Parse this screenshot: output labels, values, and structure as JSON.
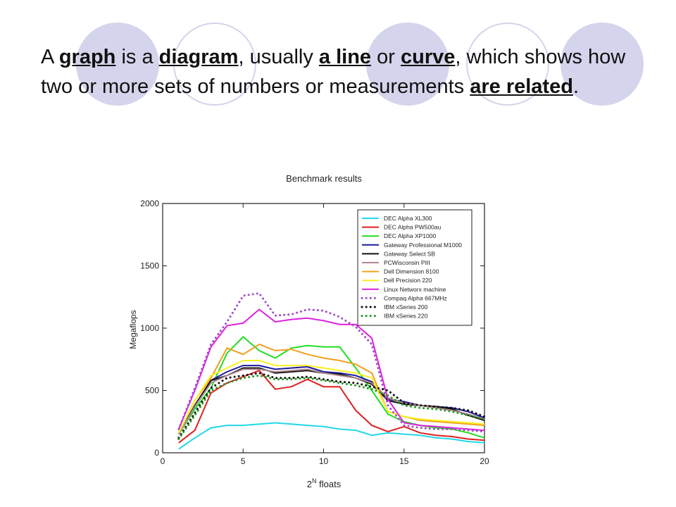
{
  "heading": {
    "w1": "A",
    "t1": "graph",
    "w2": "is a",
    "t2": "diagram",
    "w3": ", usually",
    "t3": "a line",
    "w4": "or",
    "t4": "curve",
    "w5": ", which shows how two or more sets of numbers or measurements",
    "t5": "are related",
    "w6": "."
  },
  "colors": {
    "circle": "#d4d4ec"
  },
  "chart_data": {
    "type": "line",
    "title": "Benchmark results",
    "xlabel_base": "2",
    "xlabel_sup": "N",
    "xlabel_rest": " floats",
    "ylabel": "Megaflops",
    "xlim": [
      0,
      20
    ],
    "ylim": [
      0,
      2000
    ],
    "xticks": [
      0,
      5,
      10,
      15,
      20
    ],
    "yticks": [
      0,
      500,
      1000,
      1500,
      2000
    ],
    "legend_position": "top-right",
    "x": [
      1,
      2,
      3,
      4,
      5,
      6,
      7,
      8,
      9,
      10,
      11,
      12,
      13,
      14,
      15,
      16,
      17,
      18,
      19,
      20
    ],
    "series": [
      {
        "name": "DEC Alpha XL300",
        "color": "#22d8e8",
        "dash": "solid",
        "values": [
          30,
          120,
          200,
          220,
          220,
          230,
          240,
          230,
          220,
          210,
          190,
          180,
          140,
          160,
          150,
          140,
          120,
          110,
          90,
          80
        ]
      },
      {
        "name": "DEC Alpha PW500au",
        "color": "#dd2020",
        "dash": "solid",
        "values": [
          80,
          180,
          480,
          560,
          610,
          660,
          510,
          530,
          590,
          530,
          530,
          340,
          220,
          170,
          210,
          160,
          140,
          130,
          110,
          100
        ]
      },
      {
        "name": "DEC Alpha XP1000",
        "color": "#22dd22",
        "dash": "solid",
        "values": [
          150,
          350,
          520,
          800,
          930,
          820,
          760,
          840,
          860,
          850,
          850,
          680,
          500,
          310,
          250,
          220,
          200,
          190,
          160,
          120
        ]
      },
      {
        "name": "Gateway Professional M1000",
        "color": "#1a1aa0",
        "dash": "solid",
        "values": [
          150,
          380,
          580,
          650,
          700,
          700,
          670,
          680,
          690,
          650,
          640,
          620,
          570,
          430,
          410,
          380,
          370,
          360,
          330,
          280
        ]
      },
      {
        "name": "Gateway Select SB",
        "color": "#111111",
        "dash": "solid",
        "values": [
          150,
          380,
          580,
          620,
          680,
          680,
          640,
          650,
          660,
          640,
          630,
          600,
          550,
          420,
          390,
          380,
          370,
          350,
          300,
          260
        ]
      },
      {
        "name": "PCWisconsin PIII",
        "color": "#b08890",
        "dash": "solid",
        "values": [
          150,
          370,
          560,
          620,
          670,
          670,
          650,
          660,
          670,
          640,
          620,
          600,
          560,
          440,
          400,
          380,
          360,
          340,
          310,
          270
        ]
      },
      {
        "name": "Dell Dimension 8100",
        "color": "#f0a020",
        "dash": "solid",
        "values": [
          160,
          420,
          600,
          840,
          790,
          870,
          820,
          830,
          790,
          760,
          740,
          710,
          640,
          330,
          290,
          260,
          250,
          240,
          230,
          220
        ]
      },
      {
        "name": "Dell Precision 220",
        "color": "#f8f020",
        "dash": "solid",
        "values": [
          160,
          420,
          620,
          680,
          740,
          740,
          700,
          700,
          700,
          680,
          660,
          640,
          600,
          330,
          290,
          270,
          260,
          250,
          240,
          230
        ]
      },
      {
        "name": "Linux Networx machine",
        "color": "#dd22dd",
        "dash": "solid",
        "values": [
          190,
          500,
          850,
          1020,
          1040,
          1150,
          1050,
          1070,
          1080,
          1060,
          1030,
          1030,
          920,
          430,
          240,
          220,
          210,
          200,
          190,
          180
        ]
      },
      {
        "name": "Compaq Alpha 667MHz",
        "color": "#a050c8",
        "dash": "dot",
        "values": [
          190,
          520,
          870,
          1050,
          1260,
          1280,
          1100,
          1110,
          1150,
          1140,
          1090,
          1010,
          870,
          380,
          220,
          200,
          190,
          190,
          180,
          170
        ]
      },
      {
        "name": "IBM xSeries 200",
        "color": "#111111",
        "dash": "dot",
        "values": [
          120,
          320,
          520,
          600,
          620,
          640,
          600,
          600,
          610,
          590,
          570,
          560,
          530,
          500,
          400,
          380,
          370,
          360,
          340,
          290
        ]
      },
      {
        "name": "IBM xSeries 220",
        "color": "#229922",
        "dash": "dot",
        "values": [
          110,
          300,
          500,
          560,
          600,
          620,
          590,
          590,
          600,
          580,
          560,
          540,
          510,
          460,
          380,
          360,
          350,
          330,
          300,
          270
        ]
      }
    ]
  }
}
